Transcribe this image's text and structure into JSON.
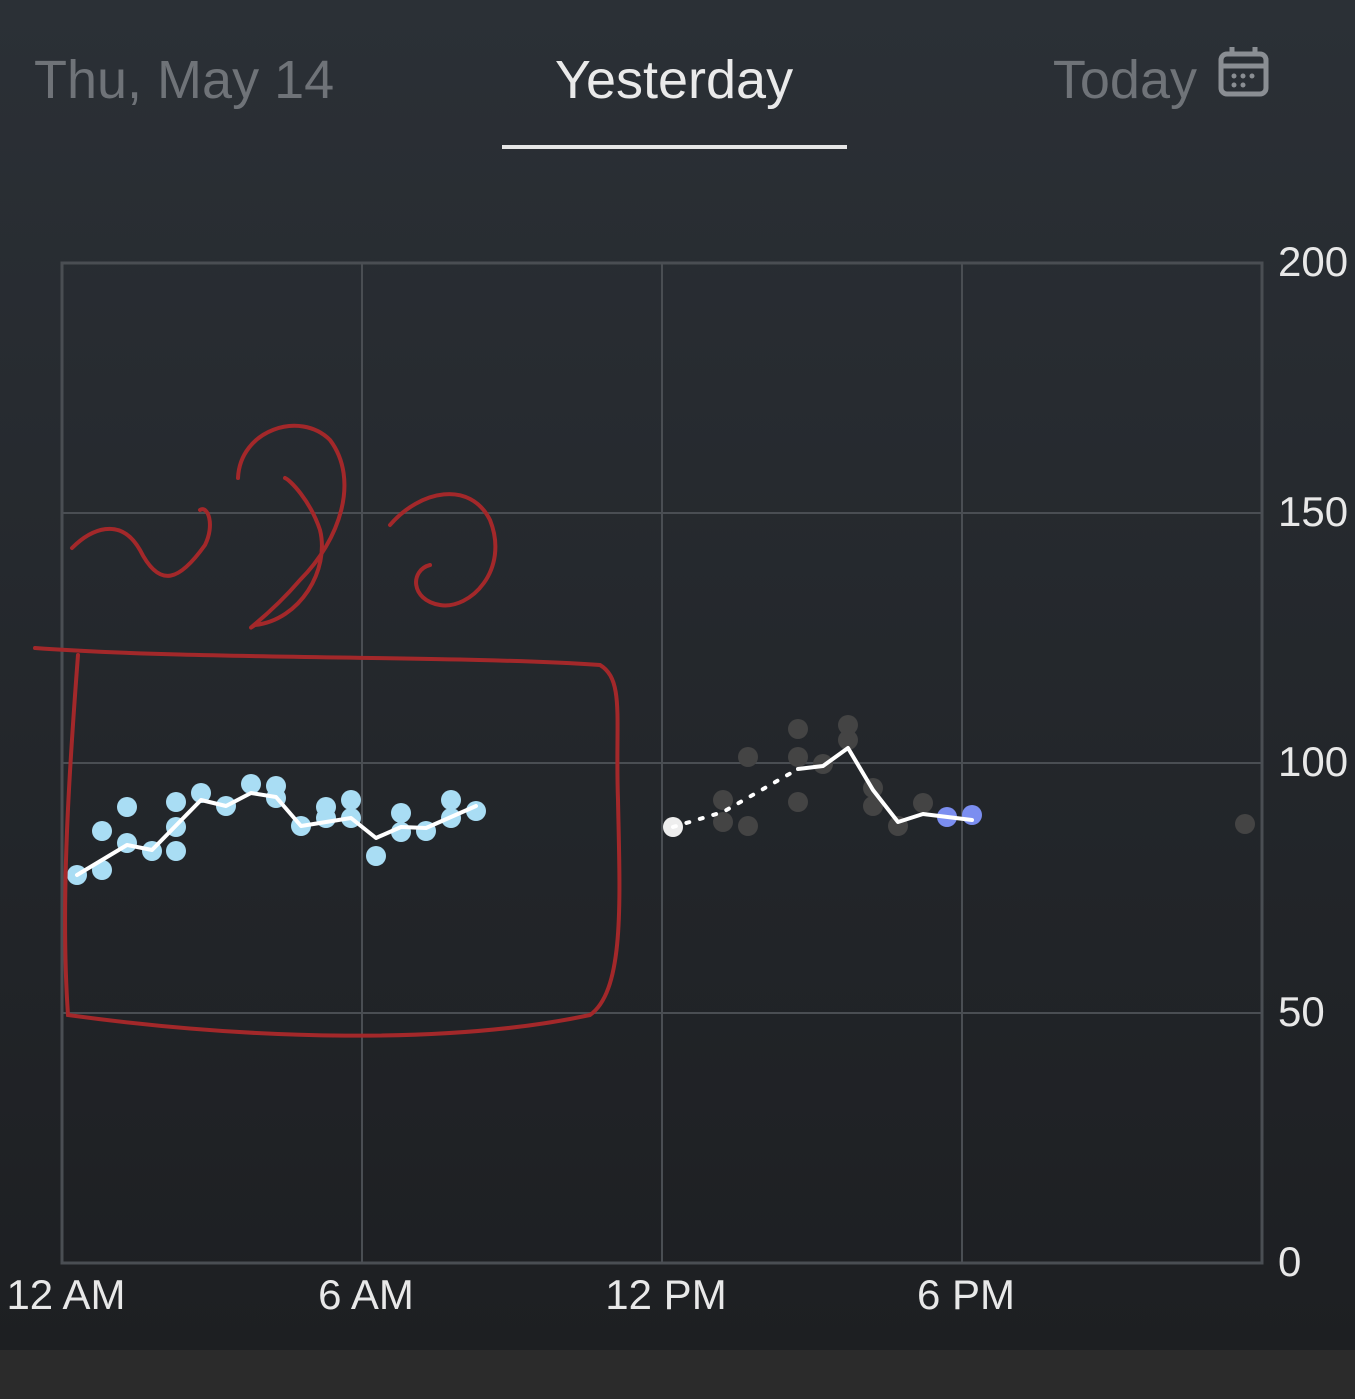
{
  "tabs": {
    "items": [
      "Thu, May 14",
      "Yesterday",
      "Today"
    ],
    "active": 1
  },
  "chart_data": {
    "type": "scatter",
    "xlim": [
      0,
      24
    ],
    "ylim": [
      0,
      200
    ],
    "xticks": [
      {
        "value": 0,
        "label": "12 AM"
      },
      {
        "value": 6,
        "label": "6 AM"
      },
      {
        "value": 12,
        "label": "12 PM"
      },
      {
        "value": 18,
        "label": "6 PM"
      }
    ],
    "yticks": [
      0,
      50,
      100,
      150,
      200
    ],
    "grid": true,
    "series": [
      {
        "mode": "markers",
        "color": "#a9ddf4",
        "x": [
          0.3,
          0.8,
          0.8,
          1.3,
          1.3,
          1.8,
          2.28,
          2.28,
          2.28,
          2.78,
          3.28,
          3.78,
          4.28,
          4.28,
          4.78,
          5.28,
          5.28,
          5.78,
          5.78,
          6.28,
          6.78,
          6.78,
          7.28,
          7.78,
          7.78,
          8.28
        ],
        "values": [
          77.6,
          78.6,
          86.4,
          91.2,
          84,
          82.4,
          92.2,
          87.2,
          82.4,
          94,
          91.4,
          95.8,
          95.4,
          93,
          87.4,
          91.2,
          89,
          92.6,
          89,
          81.4,
          90,
          86.2,
          86.4,
          92.6,
          89,
          90.4
        ]
      },
      {
        "mode": "markers",
        "color": "#444444",
        "x": [
          13.22,
          13.22,
          13.72,
          13.72,
          14.72,
          14.72,
          14.72,
          15.22,
          15.72,
          15.72,
          16.22,
          16.22,
          16.72,
          17.22,
          23.66
        ],
        "values": [
          88.2,
          92.6,
          101.2,
          87.4,
          106.8,
          101.2,
          92.2,
          99.8,
          107.6,
          104.6,
          95,
          91.4,
          87.4,
          92,
          87.8
        ]
      },
      {
        "mode": "markers",
        "color": "#eeeeee",
        "x": [
          12.22
        ],
        "values": [
          87.2
        ]
      },
      {
        "mode": "markers",
        "color": "#7b8ef0",
        "x": [
          17.7,
          18.2
        ],
        "values": [
          89.2,
          89.6
        ]
      },
      {
        "mode": "line",
        "color": "#ffffff",
        "x": [
          0.3,
          1.3,
          1.8,
          2.78,
          3.28,
          3.78,
          4.28,
          4.78,
          5.78,
          6.28,
          6.78,
          7.28,
          8.28,
          null,
          14.72,
          15.22,
          15.72,
          16.22,
          16.72,
          17.22,
          18.2
        ],
        "values": [
          77.6,
          83.6,
          82.6,
          92.6,
          91.4,
          94,
          93.2,
          87.4,
          89,
          85,
          87.2,
          87,
          91.4,
          null,
          98.8,
          99.4,
          103,
          94.6,
          88.2,
          89.8,
          88.6
        ]
      },
      {
        "mode": "line",
        "dashed": true,
        "color": "#ffffff",
        "x": [
          12.22,
          13.22,
          14.72
        ],
        "values": [
          87.2,
          90.2,
          98.8
        ]
      }
    ]
  }
}
